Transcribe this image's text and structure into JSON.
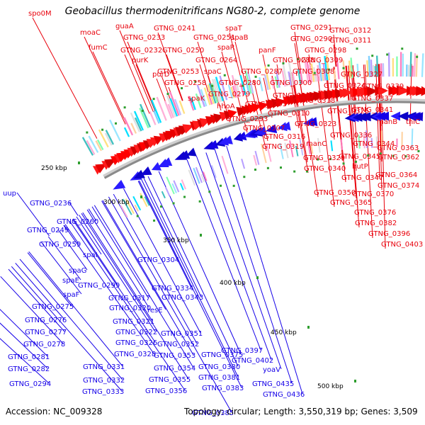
{
  "title": "Geobacillus thermodenitrificans NG80-2, complete genome",
  "footer": {
    "accession": "Accession: NC_009328",
    "topology": "Topology: circular; Length: 3,550,319 bp; Genes: 3,509"
  },
  "colors": {
    "forward_label": "#e8000b",
    "reverse_label": "#1500e8",
    "backbone": "#8a8a8a",
    "kbp_tick": "#2e9e2e"
  },
  "kbp_labels": [
    "250 kbp",
    "300 kbp",
    "350 kbp",
    "400 kbp",
    "450 kbp",
    "500 kbp"
  ],
  "forward_labels": [
    "spo0M",
    "moaC",
    "fumC",
    "guaA",
    "GTNG_0241",
    "spaT",
    "GTNG_0291",
    "GTNG_0312",
    "GTNG_0233",
    "GTNG_0251",
    "spaB",
    "GTNG_0290",
    "GTNG_0311",
    "GTNG_0232",
    "GTNG_0250",
    "spaR",
    "panF",
    "GTNG_0298",
    "purK",
    "GTNG_0264",
    "GTNG_0288",
    "GTNG_0309",
    "purD",
    "GTNG_0253",
    "spaC",
    "GTNG_0287",
    "GTNG_0308",
    "GTNG_0327",
    "GTNG_0258",
    "GTNG_0280",
    "GTNG_0300",
    "GTNG_0324",
    "GTNG_0339",
    "spaK",
    "GTNG_0279",
    "GTNG_0297",
    "GTNG_0318",
    "GTNG_0337",
    "hhoA",
    "GTNG_0295",
    "GTNG_0325",
    "GTNG_0341",
    "GTNG_0310",
    "manB",
    "thiC",
    "GTNG_0293",
    "GTNG_0323",
    "GTNG_0307",
    "GTNG_0316",
    "GTNG_0336",
    "GTNG_0319",
    "manC",
    "GTNG_0344",
    "GTNG_0363",
    "GTNG_0329",
    "GTNG_0345",
    "GTNG_0362",
    "GTNG_0340",
    "hutP",
    "GTNG_0347",
    "GTNG_0364",
    "GTNG_0374",
    "GTNG_0350",
    "GTNG_0370",
    "GTNG_0365",
    "GTNG_0376",
    "GTNG_0382",
    "GTNG_0396",
    "GTNG_0403"
  ],
  "reverse_labels": [
    "uup",
    "GTNG_0236",
    "GTNG_0260",
    "GTNG_0249",
    "GTNG_0259",
    "GTNG_0304",
    "spaI",
    "spaG",
    "GTNG_0299",
    "spaE",
    "spaF",
    "GTNG_0334",
    "GTNG_0317",
    "GTNG_0343",
    "GTNG_0275",
    "GTNG_0320",
    "resE",
    "GTNG_0276",
    "GTNG_0321",
    "GTNG_0277",
    "GTNG_0322",
    "GTNG_0351",
    "GTNG_0278",
    "GTNG_0326",
    "GTNG_0352",
    "GTNG_0281",
    "GTNG_0328",
    "GTNG_0353",
    "GTNG_0375",
    "GTNG_0397",
    "GTNG_0282",
    "GTNG_0331",
    "GTNG_0354",
    "GTNG_0380",
    "GTNG_0402",
    "GTNG_0294",
    "GTNG_0332",
    "GTNG_0355",
    "GTNG_0381",
    "yoaV",
    "GTNG_0333",
    "GTNG_0356",
    "GTNG_0383",
    "GTNG_0435",
    "GTNG_0436",
    "GTNG_0385"
  ]
}
